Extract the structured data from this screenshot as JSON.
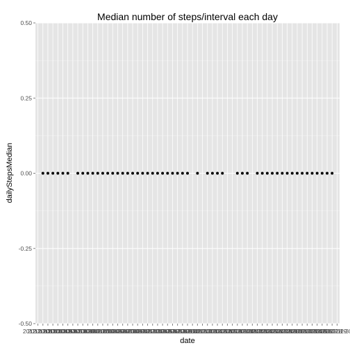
{
  "chart_data": {
    "type": "scatter",
    "title": "Median number of steps/interval each day",
    "xlabel": "date",
    "ylabel": "dailyStepsMedian",
    "ylim": [
      -0.5,
      0.5
    ],
    "y_ticks": [
      {
        "value": 0.5,
        "label": "0.50"
      },
      {
        "value": 0.25,
        "label": "0.25"
      },
      {
        "value": 0.0,
        "label": "0.00"
      },
      {
        "value": -0.25,
        "label": "-0.25"
      },
      {
        "value": -0.5,
        "label": "-0.50"
      }
    ],
    "x_tick_label_prefix": "2012-",
    "categories": [
      "2012-10-01",
      "2012-10-02",
      "2012-10-03",
      "2012-10-04",
      "2012-10-05",
      "2012-10-06",
      "2012-10-07",
      "2012-10-08",
      "2012-10-09",
      "2012-10-10",
      "2012-10-11",
      "2012-10-12",
      "2012-10-13",
      "2012-10-14",
      "2012-10-15",
      "2012-10-16",
      "2012-10-17",
      "2012-10-18",
      "2012-10-19",
      "2012-10-20",
      "2012-10-21",
      "2012-10-22",
      "2012-10-23",
      "2012-10-24",
      "2012-10-25",
      "2012-10-26",
      "2012-10-27",
      "2012-10-28",
      "2012-10-29",
      "2012-10-30",
      "2012-10-31",
      "2012-11-01",
      "2012-11-02",
      "2012-11-03",
      "2012-11-04",
      "2012-11-05",
      "2012-11-06",
      "2012-11-07",
      "2012-11-08",
      "2012-11-09",
      "2012-11-10",
      "2012-11-11",
      "2012-11-12",
      "2012-11-13",
      "2012-11-14",
      "2012-11-15",
      "2012-11-16",
      "2012-11-17",
      "2012-11-18",
      "2012-11-19",
      "2012-11-20",
      "2012-11-21",
      "2012-11-22",
      "2012-11-23",
      "2012-11-24",
      "2012-11-25",
      "2012-11-26",
      "2012-11-27",
      "2012-11-28",
      "2012-11-29",
      "2012-11-30"
    ],
    "values": [
      null,
      0,
      0,
      0,
      0,
      0,
      0,
      null,
      0,
      0,
      0,
      0,
      0,
      0,
      0,
      0,
      0,
      0,
      0,
      0,
      0,
      0,
      0,
      0,
      0,
      0,
      0,
      0,
      0,
      0,
      0,
      null,
      0,
      null,
      0,
      0,
      0,
      0,
      null,
      null,
      0,
      0,
      0,
      null,
      0,
      0,
      0,
      0,
      0,
      0,
      0,
      0,
      0,
      0,
      0,
      0,
      0,
      0,
      0,
      0,
      null
    ],
    "grid": true,
    "legend": "none",
    "colors": {
      "panel_background": "#e5e5e5",
      "gridline": "#ffffff",
      "point": "#000000",
      "tick": "#7f7f7f"
    }
  }
}
